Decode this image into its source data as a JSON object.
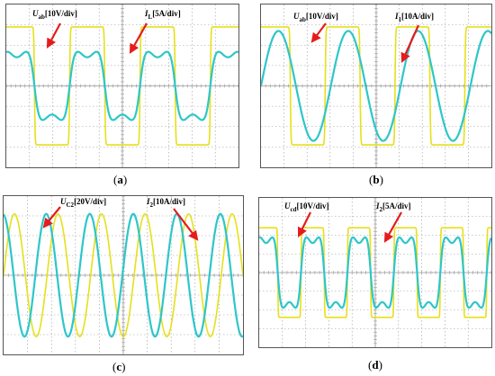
{
  "colors": {
    "voltage": "#e6e01a",
    "current": "#2ec6c9",
    "grid": "#9a9a9a",
    "arrow": "#e51c1c",
    "background": "#ffffff"
  },
  "chart_data": [
    {
      "id": "a",
      "type": "line",
      "caption": "a",
      "grid": true,
      "series": [
        {
          "name": "U_ab [10V/div]",
          "waveform": "square",
          "amplitude_div": 2.9,
          "cycles": 3.3,
          "phase": 0.1
        },
        {
          "name": "I_L [5A/div]",
          "waveform": "sine-rounded-square",
          "amplitude_div": 1.6,
          "cycles": 3.3,
          "phase": 0.1
        }
      ],
      "annotations": [
        {
          "symbol": "U",
          "sub": "ab",
          "unit": "[10V/div]"
        },
        {
          "symbol": "I",
          "sub": "L",
          "unit": "[5A/div]"
        }
      ]
    },
    {
      "id": "b",
      "type": "line",
      "caption": "b",
      "grid": true,
      "series": [
        {
          "name": "U_ab [10V/div]",
          "waveform": "square",
          "amplitude_div": 2.9,
          "cycles": 3.3,
          "phase": 0.08
        },
        {
          "name": "I_1 [10A/div]",
          "waveform": "sine",
          "amplitude_div": 2.7,
          "cycles": 3.3,
          "phase": 0.0
        }
      ],
      "annotations": [
        {
          "symbol": "U",
          "sub": "ab",
          "unit": "[10V/div]"
        },
        {
          "symbol": "I",
          "sub": "1",
          "unit": "[10A/div]"
        }
      ]
    },
    {
      "id": "c",
      "type": "line",
      "caption": "c",
      "grid": true,
      "series": [
        {
          "name": "U_C2 [20V/div]",
          "waveform": "sine",
          "amplitude_div": 3.1,
          "cycles": 5.5,
          "phase": 0.0
        },
        {
          "name": "I_2 [10A/div]",
          "waveform": "sine",
          "amplitude_div": 3.1,
          "cycles": 5.5,
          "phase": 0.27
        }
      ],
      "annotations": [
        {
          "symbol": "U",
          "sub": "C2",
          "unit": "[20V/div]"
        },
        {
          "symbol": "I",
          "sub": "2",
          "unit": "[10A/div]"
        }
      ]
    },
    {
      "id": "d",
      "type": "line",
      "caption": "d",
      "grid": true,
      "series": [
        {
          "name": "U_cd [10V/div]",
          "waveform": "square",
          "amplitude_div": 2.4,
          "cycles": 5.0,
          "phase": 0.1
        },
        {
          "name": "I_2 [5A/div]",
          "waveform": "sine-rounded-square",
          "amplitude_div": 1.8,
          "cycles": 5.0,
          "phase": 0.1
        }
      ],
      "annotations": [
        {
          "symbol": "U",
          "sub": "cd",
          "unit": "[10V/div]"
        },
        {
          "symbol": "I",
          "sub": "2",
          "unit": "[5A/div]"
        }
      ]
    }
  ]
}
